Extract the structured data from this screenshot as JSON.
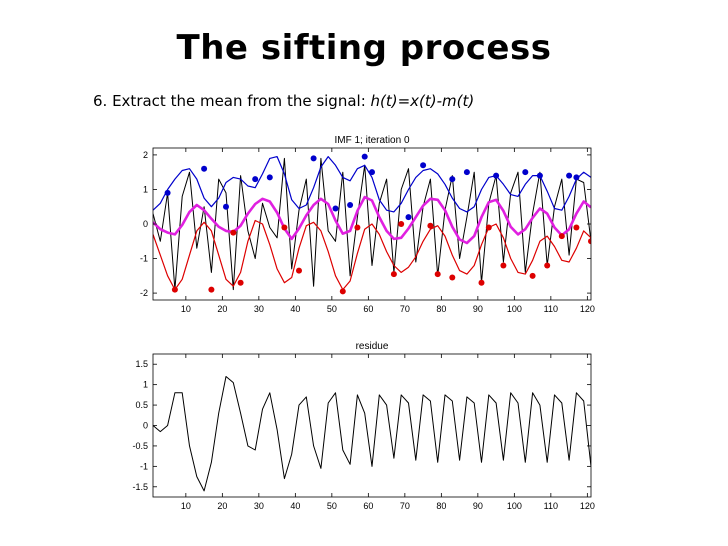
{
  "slide": {
    "title": "The sifting process",
    "step_text": "6. Extract the mean from the signal: ",
    "formula": "h(t)=x(t)-m(t)"
  },
  "colors": {
    "signal": "#000000",
    "upper_envelope": "#0000cc",
    "lower_envelope": "#dd0000",
    "mean": "#e020e0"
  },
  "chart_data": [
    {
      "type": "line",
      "title": "IMF 1;   iteration 0",
      "xlabel": "",
      "ylabel": "",
      "xlim": [
        1,
        121
      ],
      "ylim": [
        -2.2,
        2.2
      ],
      "xticks": [
        10,
        20,
        30,
        40,
        50,
        60,
        70,
        80,
        90,
        100,
        110,
        120
      ],
      "yticks": [
        -2,
        -1,
        0,
        1,
        2
      ],
      "grid": false,
      "x": [
        1,
        3,
        5,
        7,
        9,
        11,
        13,
        15,
        17,
        19,
        21,
        23,
        25,
        27,
        29,
        31,
        33,
        35,
        37,
        39,
        41,
        43,
        45,
        47,
        49,
        51,
        53,
        55,
        57,
        59,
        61,
        63,
        65,
        67,
        69,
        71,
        73,
        75,
        77,
        79,
        81,
        83,
        85,
        87,
        89,
        91,
        93,
        95,
        97,
        99,
        101,
        103,
        105,
        107,
        109,
        111,
        113,
        115,
        117,
        119,
        121
      ],
      "series": [
        {
          "role": "signal",
          "values": [
            0.3,
            -0.5,
            0.9,
            -1.9,
            0.8,
            1.5,
            -0.7,
            0.5,
            -1.4,
            1.3,
            0.9,
            -1.9,
            1.4,
            -0.2,
            -1.0,
            0.6,
            -0.1,
            -0.4,
            1.9,
            -1.3,
            0.4,
            1.3,
            -1.8,
            1.9,
            -0.2,
            -0.5,
            1.5,
            -1.5,
            0.2,
            1.7,
            -1.2,
            0.6,
            1.3,
            -1.4,
            1.0,
            1.6,
            -1.1,
            0.5,
            1.3,
            -1.5,
            0.4,
            1.4,
            -1.0,
            0.2,
            1.5,
            -1.7,
            0.6,
            1.4,
            -1.1,
            0.9,
            1.5,
            -1.4,
            0.3,
            1.5,
            -1.2,
            0.5,
            1.3,
            -0.9,
            1.3,
            1.2,
            -0.5
          ]
        },
        {
          "role": "upper_envelope",
          "values": [
            0.4,
            0.6,
            1.0,
            1.3,
            1.55,
            1.6,
            1.3,
            0.75,
            0.5,
            0.75,
            1.2,
            1.35,
            1.3,
            1.1,
            1.05,
            1.45,
            1.9,
            1.95,
            1.45,
            0.7,
            0.45,
            0.55,
            1.05,
            1.65,
            1.95,
            1.7,
            1.35,
            1.25,
            1.6,
            1.7,
            1.35,
            0.7,
            0.4,
            0.35,
            0.6,
            1.0,
            1.35,
            1.55,
            1.6,
            1.45,
            1.15,
            0.75,
            0.45,
            0.35,
            0.5,
            1.0,
            1.35,
            1.4,
            1.15,
            0.85,
            0.8,
            1.15,
            1.4,
            1.4,
            0.95,
            0.45,
            0.4,
            0.8,
            1.3,
            1.5,
            1.35
          ]
        },
        {
          "role": "lower_envelope",
          "values": [
            -0.3,
            -0.9,
            -1.5,
            -1.9,
            -1.6,
            -0.9,
            -0.2,
            0.05,
            -0.2,
            -0.9,
            -1.6,
            -1.8,
            -1.4,
            -0.5,
            0.1,
            0.0,
            -0.6,
            -1.3,
            -1.7,
            -1.55,
            -0.7,
            -0.05,
            0.05,
            -0.2,
            -0.8,
            -1.5,
            -1.9,
            -1.65,
            -0.85,
            -0.15,
            0.0,
            -0.3,
            -0.8,
            -1.2,
            -1.4,
            -1.25,
            -0.95,
            -0.5,
            -0.15,
            -0.05,
            -0.35,
            -0.9,
            -1.35,
            -1.45,
            -1.2,
            -0.6,
            -0.1,
            0.0,
            -0.4,
            -1.0,
            -1.4,
            -1.45,
            -1.05,
            -0.5,
            -0.35,
            -0.65,
            -1.05,
            -1.1,
            -0.7,
            -0.2,
            -0.4
          ]
        },
        {
          "role": "mean",
          "values": [
            0.05,
            -0.15,
            -0.25,
            -0.3,
            -0.03,
            0.35,
            0.55,
            0.4,
            0.15,
            -0.08,
            -0.2,
            -0.23,
            -0.05,
            0.3,
            0.58,
            0.73,
            0.65,
            0.33,
            -0.13,
            -0.43,
            -0.13,
            0.25,
            0.55,
            0.73,
            0.58,
            0.1,
            -0.28,
            -0.2,
            0.38,
            0.78,
            0.68,
            0.2,
            -0.2,
            -0.43,
            -0.4,
            -0.13,
            0.2,
            0.53,
            0.73,
            0.7,
            0.4,
            -0.08,
            -0.45,
            -0.55,
            -0.35,
            0.2,
            0.63,
            0.7,
            0.38,
            -0.08,
            -0.3,
            -0.15,
            0.18,
            0.45,
            0.3,
            -0.1,
            -0.33,
            -0.15,
            0.3,
            0.65,
            0.48
          ]
        }
      ],
      "upper_extrema": [
        [
          5,
          0.9
        ],
        [
          15,
          1.6
        ],
        [
          21,
          0.5
        ],
        [
          29,
          1.3
        ],
        [
          33,
          1.35
        ],
        [
          45,
          1.9
        ],
        [
          51,
          0.45
        ],
        [
          55,
          0.55
        ],
        [
          59,
          1.95
        ],
        [
          61,
          1.5
        ],
        [
          71,
          0.2
        ],
        [
          75,
          1.7
        ],
        [
          83,
          1.3
        ],
        [
          87,
          1.5
        ],
        [
          95,
          1.4
        ],
        [
          103,
          1.5
        ],
        [
          107,
          1.4
        ],
        [
          115,
          1.4
        ],
        [
          117,
          1.35
        ]
      ],
      "lower_extrema": [
        [
          7,
          -1.9
        ],
        [
          23,
          -0.25
        ],
        [
          37,
          -0.1
        ],
        [
          17,
          -1.9
        ],
        [
          25,
          -1.7
        ],
        [
          41,
          -1.35
        ],
        [
          53,
          -1.95
        ],
        [
          57,
          -0.1
        ],
        [
          67,
          -1.45
        ],
        [
          69,
          0.0
        ],
        [
          77,
          -0.05
        ],
        [
          79,
          -1.45
        ],
        [
          83,
          -1.55
        ],
        [
          91,
          -1.7
        ],
        [
          93,
          -0.1
        ],
        [
          97,
          -1.2
        ],
        [
          105,
          -1.5
        ],
        [
          109,
          -1.2
        ],
        [
          113,
          -0.35
        ],
        [
          117,
          -0.1
        ],
        [
          121,
          -0.5
        ]
      ]
    },
    {
      "type": "line",
      "title": "residue",
      "xlabel": "",
      "ylabel": "",
      "xlim": [
        1,
        121
      ],
      "ylim": [
        -1.75,
        1.75
      ],
      "xticks": [
        10,
        20,
        30,
        40,
        50,
        60,
        70,
        80,
        90,
        100,
        110,
        120
      ],
      "yticks": [
        -1.5,
        -1,
        -0.5,
        0,
        0.5,
        1,
        1.5
      ],
      "grid": false,
      "x": [
        1,
        3,
        5,
        7,
        9,
        11,
        13,
        15,
        17,
        19,
        21,
        23,
        25,
        27,
        29,
        31,
        33,
        35,
        37,
        39,
        41,
        43,
        45,
        47,
        49,
        51,
        53,
        55,
        57,
        59,
        61,
        63,
        65,
        67,
        69,
        71,
        73,
        75,
        77,
        79,
        81,
        83,
        85,
        87,
        89,
        91,
        93,
        95,
        97,
        99,
        101,
        103,
        105,
        107,
        109,
        111,
        113,
        115,
        117,
        119,
        121
      ],
      "series": [
        {
          "role": "signal",
          "values": [
            0.0,
            -0.15,
            0.0,
            0.8,
            0.8,
            -0.5,
            -1.25,
            -1.6,
            -0.9,
            0.3,
            1.2,
            1.05,
            0.3,
            -0.5,
            -0.6,
            0.4,
            0.8,
            -0.1,
            -1.3,
            -0.7,
            0.5,
            0.7,
            -0.5,
            -1.05,
            0.55,
            0.8,
            -0.6,
            -0.95,
            0.75,
            0.3,
            -1.0,
            0.75,
            0.5,
            -0.8,
            0.75,
            0.55,
            -0.85,
            0.75,
            0.6,
            -0.9,
            0.75,
            0.6,
            -0.85,
            0.7,
            0.55,
            -0.9,
            0.75,
            0.55,
            -0.85,
            0.8,
            0.55,
            -0.9,
            0.8,
            0.5,
            -0.9,
            0.75,
            0.55,
            -0.85,
            0.8,
            0.6,
            -1.0
          ]
        }
      ]
    }
  ]
}
